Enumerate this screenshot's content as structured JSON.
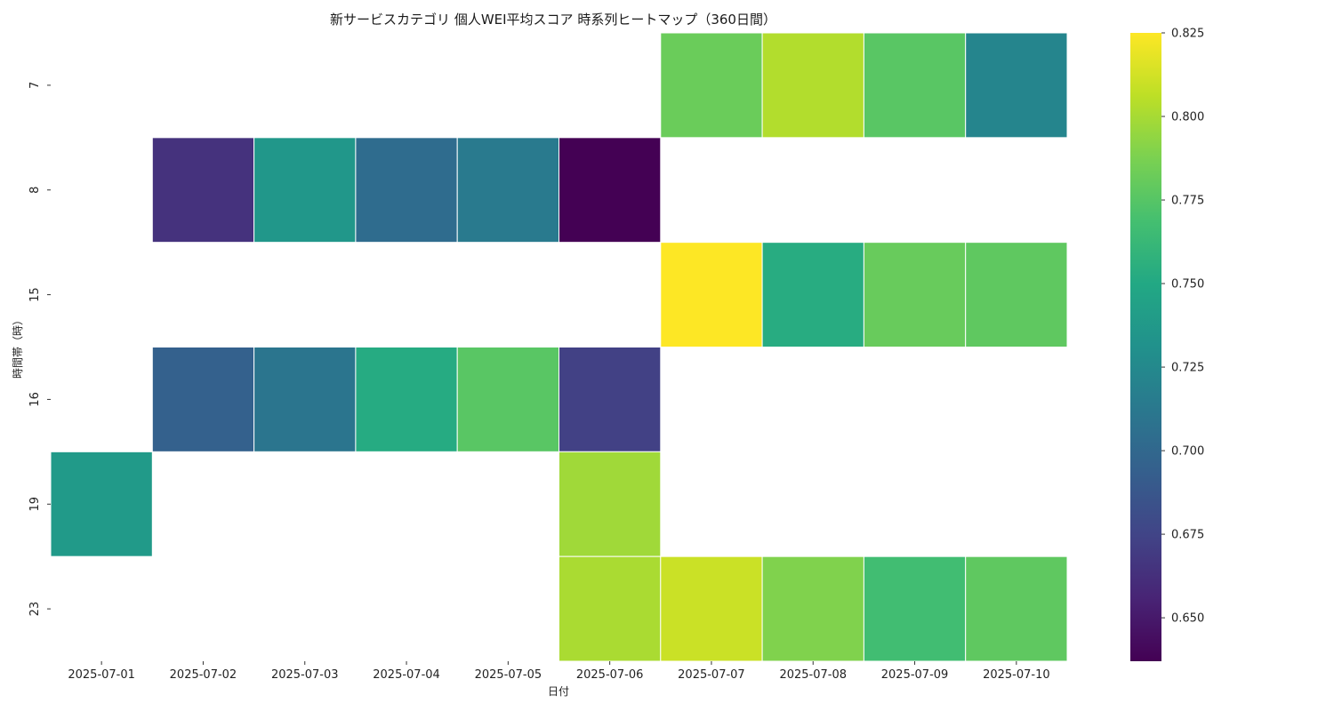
{
  "chart_data": {
    "type": "heatmap",
    "title": "新サービスカテゴリ 個人WEI平均スコア 時系列ヒートマップ（360日間）",
    "xlabel": "日付",
    "ylabel": "時間帯（時）",
    "x_categories": [
      "2025-07-01",
      "2025-07-02",
      "2025-07-03",
      "2025-07-04",
      "2025-07-05",
      "2025-07-06",
      "2025-07-07",
      "2025-07-08",
      "2025-07-09",
      "2025-07-10"
    ],
    "y_categories": [
      "7",
      "8",
      "15",
      "16",
      "19",
      "23"
    ],
    "values": [
      [
        null,
        null,
        null,
        null,
        null,
        null,
        0.782,
        0.803,
        0.776,
        0.722
      ],
      [
        null,
        0.664,
        0.736,
        0.703,
        0.714,
        0.637,
        null,
        null,
        null,
        null
      ],
      [
        null,
        null,
        null,
        null,
        null,
        null,
        0.825,
        0.753,
        0.781,
        0.778
      ],
      [
        null,
        0.695,
        0.71,
        0.752,
        0.776,
        0.673,
        null,
        null,
        null,
        null
      ],
      [
        0.738,
        null,
        null,
        null,
        null,
        0.798,
        null,
        null,
        null,
        null
      ],
      [
        null,
        null,
        null,
        null,
        null,
        0.801,
        0.81,
        0.789,
        0.767,
        0.778
      ]
    ],
    "colorscale": "viridis",
    "colorbar": {
      "min": 0.637,
      "max": 0.825,
      "ticks": [
        0.65,
        0.675,
        0.7,
        0.725,
        0.75,
        0.775,
        0.8,
        0.825
      ],
      "tick_labels": [
        "0.650",
        "0.675",
        "0.700",
        "0.725",
        "0.750",
        "0.775",
        "0.800",
        "0.825"
      ]
    },
    "grid": false,
    "legend": "colorbar-right"
  }
}
